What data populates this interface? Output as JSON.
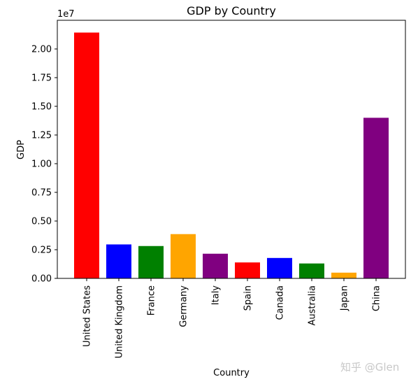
{
  "chart_data": {
    "type": "bar",
    "title": "GDP by Country",
    "xlabel": "Country",
    "ylabel": "GDP",
    "offset_text": "1e7",
    "categories": [
      "United States",
      "United Kingdom",
      "France",
      "Germany",
      "Italy",
      "Spain",
      "Canada",
      "Australia",
      "Japan",
      "China"
    ],
    "values": [
      21430000,
      2960000,
      2820000,
      3860000,
      2150000,
      1390000,
      1780000,
      1300000,
      500000,
      14000000
    ],
    "colors": [
      "#ff0000",
      "#0000ff",
      "#008000",
      "#ffa500",
      "#800080",
      "#ff0000",
      "#0000ff",
      "#008000",
      "#ffa500",
      "#800080"
    ],
    "ylim": [
      0,
      22500000
    ],
    "yticks": [
      0,
      2500000,
      5000000,
      7500000,
      10000000,
      12500000,
      15000000,
      17500000,
      20000000
    ],
    "ytick_labels": [
      "0.00",
      "0.25",
      "0.50",
      "0.75",
      "1.00",
      "1.25",
      "1.50",
      "1.75",
      "2.00"
    ],
    "grid": false,
    "legend": "none"
  },
  "watermark": "知乎 @Glen"
}
